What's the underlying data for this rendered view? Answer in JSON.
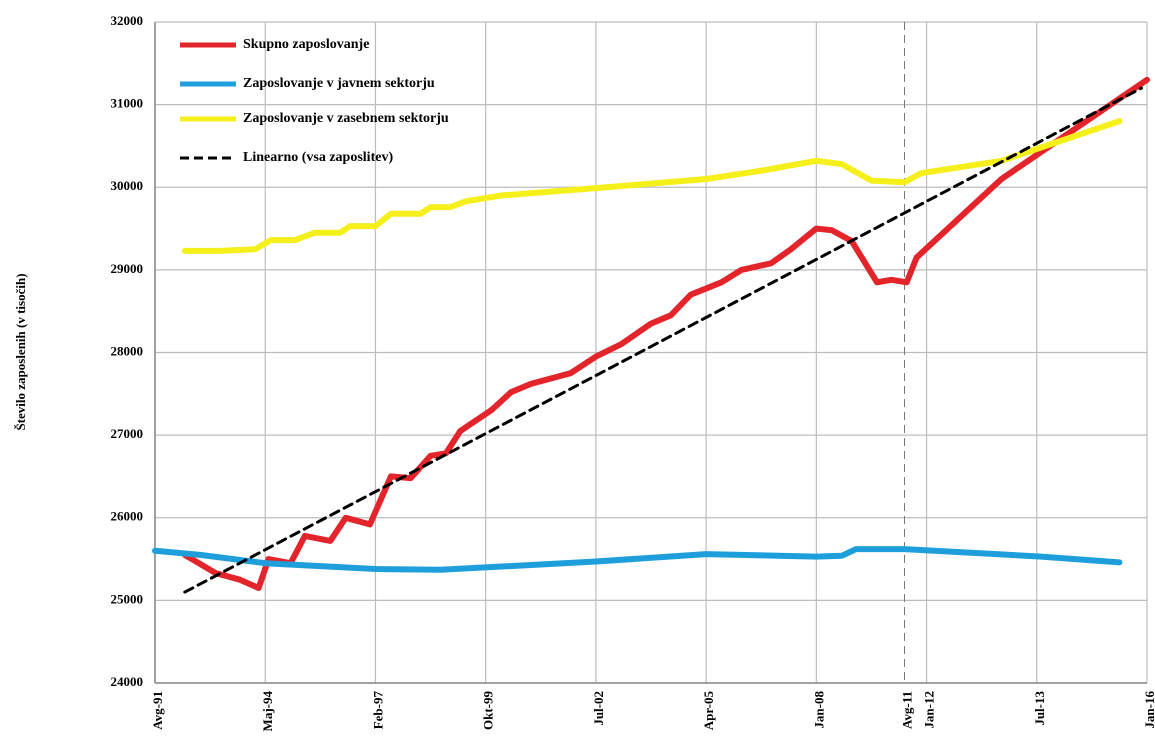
{
  "chart_data": {
    "type": "line",
    "y_label": "Število zaposlenih (v tisočih)",
    "xlim": [
      0,
      9
    ],
    "xticks": [
      {
        "value": 0,
        "label": "Avg-91"
      },
      {
        "value": 1,
        "label": "Maj-94"
      },
      {
        "value": 2,
        "label": "Feb-97"
      },
      {
        "value": 3,
        "label": "Okt-99"
      },
      {
        "value": 4,
        "label": "Jul-02"
      },
      {
        "value": 5,
        "label": "Apr-05"
      },
      {
        "value": 6,
        "label": "Jan-08"
      },
      {
        "value": 6.8,
        "label": "Avg-11"
      },
      {
        "value": 7,
        "label": "Jan-12"
      },
      {
        "value": 8,
        "label": "Jul-13"
      },
      {
        "value": 9,
        "label": "Jan-16"
      }
    ],
    "ylim": [
      24000,
      32000
    ],
    "yticks": [
      24000,
      25000,
      26000,
      27000,
      28000,
      29000,
      30000,
      31000,
      32000
    ],
    "grid": true,
    "legend": "upper left",
    "series": [
      {
        "name": "Skupno zaposlovanje",
        "color": "#e3242b",
        "x": [
          0.27,
          0.55,
          0.77,
          0.94,
          1.03,
          1.23,
          1.36,
          1.59,
          1.73,
          1.95,
          2.14,
          2.32,
          2.5,
          2.64,
          2.77,
          3.05,
          3.23,
          3.41,
          3.77,
          4.0,
          4.23,
          4.5,
          4.68,
          4.86,
          5.14,
          5.32,
          5.59,
          5.77,
          6.0,
          6.14,
          6.32,
          6.55,
          6.68,
          6.82,
          6.91,
          7.68,
          9.0
        ],
        "values": [
          25550,
          25330,
          25250,
          25150,
          25500,
          25450,
          25780,
          25720,
          26000,
          25920,
          26500,
          26480,
          26750,
          26780,
          27050,
          27300,
          27520,
          27620,
          27750,
          27950,
          28100,
          28350,
          28450,
          28700,
          28850,
          29000,
          29080,
          29250,
          29500,
          29480,
          29350,
          28850,
          28880,
          28850,
          29150,
          30100,
          31300
        ]
      },
      {
        "name": "Zaposlovanje v javnem sektorju",
        "color": "#1e9fdc",
        "x": [
          0,
          0.41,
          1.0,
          2.0,
          2.59,
          4.0,
          5.0,
          6.0,
          6.23,
          6.36,
          6.8,
          8.04,
          8.75
        ],
        "values": [
          25600,
          25550,
          25450,
          25380,
          25370,
          25470,
          25560,
          25530,
          25540,
          25620,
          25620,
          25530,
          25460
        ]
      },
      {
        "name": "Zaposlovanje v zasebnem sektorju",
        "color": "#f5ef1a",
        "x": [
          0.27,
          0.59,
          0.91,
          1.05,
          1.27,
          1.45,
          1.68,
          1.77,
          2.0,
          2.14,
          2.41,
          2.5,
          2.68,
          2.82,
          3.14,
          4.0,
          5.0,
          5.5,
          6.0,
          6.23,
          6.5,
          6.8,
          6.95,
          7.68,
          8.75
        ],
        "values": [
          29230,
          29230,
          29250,
          29360,
          29360,
          29450,
          29450,
          29530,
          29530,
          29680,
          29680,
          29760,
          29760,
          29830,
          29900,
          29990,
          30100,
          30200,
          30320,
          30280,
          30080,
          30060,
          30170,
          30320,
          30800
        ]
      },
      {
        "name": "Linearno (vsa zaposlitev)",
        "color": "#000000",
        "style": "dashed",
        "x": [
          0.27,
          8.95
        ],
        "values": [
          25100,
          31200
        ]
      }
    ]
  }
}
